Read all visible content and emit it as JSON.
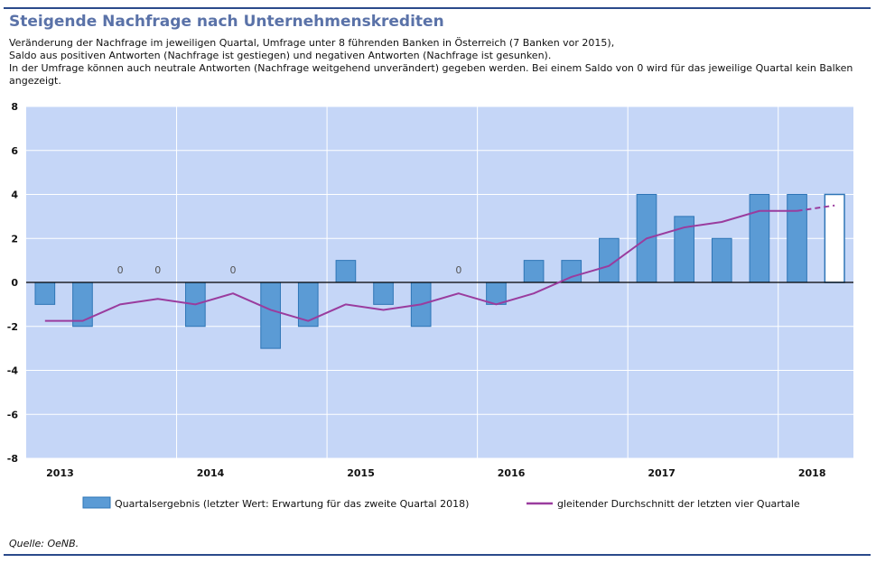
{
  "header": {
    "title": "Steigende Nachfrage nach Unternehmenskrediten",
    "subtitle_lines": [
      "Veränderung der Nachfrage im jeweiligen Quartal, Umfrage unter 8 führenden Banken in Österreich (7 Banken vor 2015),",
      "Saldo aus positiven Antworten (Nachfrage ist gestiegen) und negativen Antworten (Nachfrage ist gesunken).",
      "In der Umfrage können auch neutrale Antworten (Nachfrage weitgehend unverändert) gegeben werden. Bei einem Saldo von 0 wird für das jeweilige Quartal kein Balken",
      "angezeigt."
    ]
  },
  "source": "Quelle: OeNB.",
  "chart_data": {
    "type": "bar",
    "ylim": [
      -8,
      8
    ],
    "yticks": [
      8,
      6,
      4,
      2,
      0,
      -2,
      -4,
      -6,
      -8
    ],
    "year_labels": [
      "2013",
      "2014",
      "2015",
      "2016",
      "2017",
      "2018"
    ],
    "zero_label": "0",
    "grid": true,
    "legend_position": "bottom",
    "series": [
      {
        "name": "Quartalsergebnis (letzter Wert: Erwartung für das zweite Quartal 2018)",
        "type": "bar",
        "color": "#5b9bd5",
        "border": "#2e75b6",
        "values": [
          -1,
          -2,
          0,
          0,
          -2,
          0,
          -3,
          -2,
          1,
          -1,
          -2,
          0,
          -1,
          1,
          1,
          2,
          4,
          3,
          2,
          4,
          4,
          4
        ],
        "last_is_expectation": true
      },
      {
        "name": "gleitender Durchschnitt der letzten vier Quartale",
        "type": "line",
        "color": "#9a3c9e",
        "values": [
          -1.75,
          -1.75,
          -1.0,
          -0.75,
          -1.0,
          -0.5,
          -1.25,
          -1.75,
          -1.0,
          -1.25,
          -1.0,
          -0.5,
          -1.0,
          -0.5,
          0.25,
          0.75,
          2.0,
          2.5,
          2.75,
          3.25,
          3.25,
          3.5
        ],
        "dashed_from_index": 20
      }
    ]
  },
  "colors": {
    "plot_background": "#c5d6f7",
    "title": "#5a72a8",
    "rule": "#2b4a8b"
  }
}
